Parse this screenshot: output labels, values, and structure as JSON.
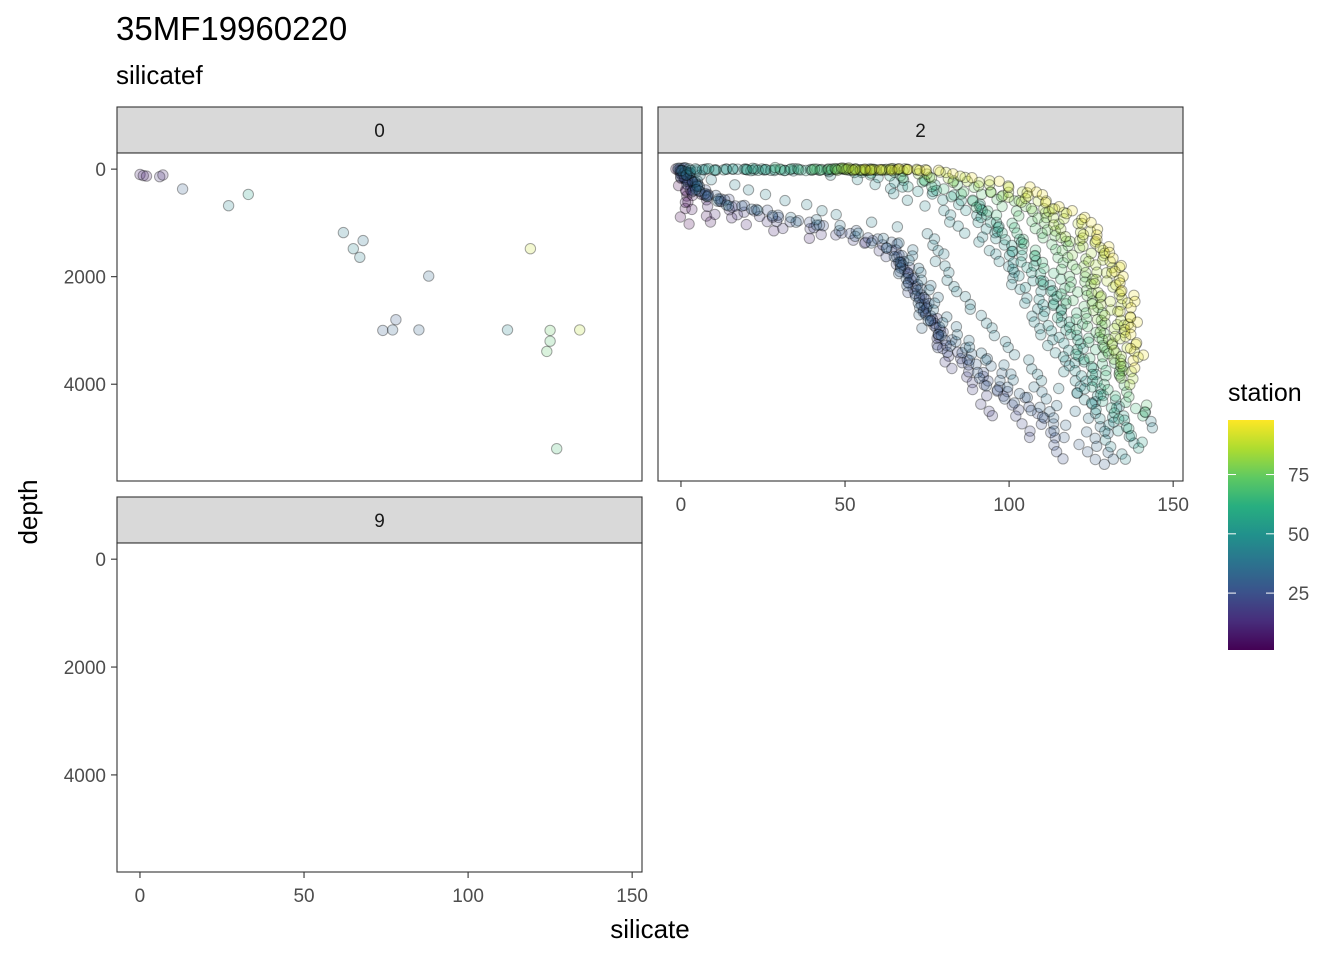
{
  "chart_data": {
    "type": "scatter",
    "title": "35MF19960220",
    "subtitle": "silicatef",
    "xlabel": "silicate",
    "ylabel": "depth",
    "xlim": [
      -7,
      153
    ],
    "ylim": [
      5800,
      -300
    ],
    "y_reversed": true,
    "x_ticks": [
      0,
      50,
      100,
      150
    ],
    "y_ticks": [
      0,
      2000,
      4000
    ],
    "grid": false,
    "legend": {
      "title": "station",
      "type": "colorbar",
      "palette": "viridis",
      "min": 1,
      "max": 98,
      "ticks": [
        25,
        50,
        75
      ],
      "placement": "right"
    },
    "facets": [
      {
        "label": "0",
        "points": [
          {
            "x": 0,
            "y": 100,
            "station": 10
          },
          {
            "x": 1,
            "y": 120,
            "station": 12
          },
          {
            "x": 2,
            "y": 130,
            "station": 8
          },
          {
            "x": 6,
            "y": 140,
            "station": 14
          },
          {
            "x": 7,
            "y": 110,
            "station": 11
          },
          {
            "x": 13,
            "y": 370,
            "station": 30
          },
          {
            "x": 27,
            "y": 680,
            "station": 45
          },
          {
            "x": 33,
            "y": 470,
            "station": 55
          },
          {
            "x": 62,
            "y": 1180,
            "station": 40
          },
          {
            "x": 65,
            "y": 1480,
            "station": 45
          },
          {
            "x": 67,
            "y": 1640,
            "station": 42
          },
          {
            "x": 68,
            "y": 1330,
            "station": 38
          },
          {
            "x": 74,
            "y": 3000,
            "station": 30
          },
          {
            "x": 77,
            "y": 2990,
            "station": 32
          },
          {
            "x": 78,
            "y": 2800,
            "station": 28
          },
          {
            "x": 85,
            "y": 2990,
            "station": 32
          },
          {
            "x": 88,
            "y": 1990,
            "station": 34
          },
          {
            "x": 112,
            "y": 2990,
            "station": 44
          },
          {
            "x": 119,
            "y": 1480,
            "station": 90
          },
          {
            "x": 124,
            "y": 3390,
            "station": 72
          },
          {
            "x": 125,
            "y": 3000,
            "station": 74
          },
          {
            "x": 125,
            "y": 3200,
            "station": 70
          },
          {
            "x": 127,
            "y": 5200,
            "station": 68
          },
          {
            "x": 134,
            "y": 2990,
            "station": 88
          }
        ]
      },
      {
        "label": "2",
        "generated_from_profiles": true,
        "profiles": [
          {
            "station": 1,
            "k": [
              [
                0,
                0
              ],
              [
                0.5,
                200
              ],
              [
                1,
                700
              ],
              [
                1,
                1000
              ]
            ]
          },
          {
            "station": 5,
            "k": [
              [
                0,
                0
              ],
              [
                1,
                200
              ],
              [
                3,
                700
              ],
              [
                8,
                1000
              ]
            ]
          },
          {
            "station": 10,
            "k": [
              [
                0,
                0
              ],
              [
                3,
                300
              ],
              [
                10,
                800
              ],
              [
                25,
                1150
              ],
              [
                40,
                1300
              ]
            ]
          },
          {
            "station": 14,
            "k": [
              [
                0,
                0
              ],
              [
                5,
                400
              ],
              [
                20,
                900
              ],
              [
                40,
                1200
              ],
              [
                55,
                1350
              ]
            ]
          },
          {
            "station": 18,
            "k": [
              [
                0,
                0
              ],
              [
                5,
                400
              ],
              [
                25,
                900
              ],
              [
                50,
                1250
              ],
              [
                65,
                1600
              ],
              [
                75,
                2600
              ],
              [
                82,
                3600
              ],
              [
                90,
                4100
              ],
              [
                96,
                4600
              ]
            ]
          },
          {
            "station": 22,
            "k": [
              [
                0,
                0
              ],
              [
                5,
                400
              ],
              [
                30,
                950
              ],
              [
                60,
                1350
              ],
              [
                70,
                2000
              ],
              [
                78,
                3000
              ],
              [
                88,
                3700
              ],
              [
                102,
                4500
              ],
              [
                108,
                5000
              ]
            ]
          },
          {
            "station": 26,
            "k": [
              [
                0,
                0
              ],
              [
                8,
                500
              ],
              [
                40,
                1000
              ],
              [
                65,
                1400
              ],
              [
                73,
                2600
              ],
              [
                80,
                3300
              ],
              [
                95,
                4000
              ],
              [
                108,
                4400
              ],
              [
                115,
                5200
              ],
              [
                118,
                5400
              ]
            ]
          },
          {
            "station": 30,
            "k": [
              [
                0,
                0
              ],
              [
                5,
                400
              ],
              [
                35,
                950
              ],
              [
                62,
                1300
              ],
              [
                72,
                2100
              ],
              [
                78,
                3000
              ],
              [
                92,
                3900
              ],
              [
                108,
                4600
              ],
              [
                118,
                5000
              ],
              [
                128,
                5500
              ]
            ]
          },
          {
            "station": 34,
            "k": [
              [
                0,
                0
              ],
              [
                8,
                550
              ],
              [
                40,
                1050
              ],
              [
                65,
                1500
              ],
              [
                70,
                2200
              ],
              [
                75,
                3000
              ],
              [
                88,
                3300
              ],
              [
                105,
                4300
              ],
              [
                125,
                5000
              ],
              [
                132,
                5400
              ]
            ]
          },
          {
            "station": 38,
            "k": [
              [
                0,
                0
              ],
              [
                10,
                600
              ],
              [
                42,
                1000
              ],
              [
                68,
                1400
              ],
              [
                75,
                2200
              ],
              [
                80,
                2800
              ],
              [
                95,
                3600
              ],
              [
                115,
                4400
              ],
              [
                130,
                4900
              ]
            ]
          },
          {
            "station": 42,
            "k": [
              [
                0,
                0
              ],
              [
                20,
                400
              ],
              [
                50,
                900
              ],
              [
                75,
                1200
              ],
              [
                82,
                2000
              ],
              [
                95,
                3000
              ],
              [
                110,
                3900
              ],
              [
                128,
                4300
              ],
              [
                140,
                4500
              ],
              [
                145,
                4800
              ]
            ]
          },
          {
            "station": 46,
            "k": [
              [
                2,
                0
              ],
              [
                25,
                0
              ],
              [
                55,
                200
              ],
              [
                80,
                800
              ],
              [
                95,
                1500
              ],
              [
                105,
                2400
              ],
              [
                112,
                3200
              ],
              [
                120,
                4000
              ],
              [
                128,
                4700
              ],
              [
                135,
                5400
              ]
            ]
          },
          {
            "station": 50,
            "k": [
              [
                5,
                0
              ],
              [
                35,
                0
              ],
              [
                60,
                150
              ],
              [
                85,
                700
              ],
              [
                98,
                1400
              ],
              [
                108,
                2300
              ],
              [
                115,
                3100
              ],
              [
                122,
                3900
              ],
              [
                130,
                4600
              ],
              [
                138,
                5100
              ]
            ]
          },
          {
            "station": 55,
            "k": [
              [
                10,
                0
              ],
              [
                45,
                0
              ],
              [
                65,
                200
              ],
              [
                88,
                600
              ],
              [
                100,
                1300
              ],
              [
                112,
                2200
              ],
              [
                118,
                3000
              ],
              [
                125,
                3800
              ],
              [
                133,
                4500
              ],
              [
                140,
                5200
              ]
            ]
          },
          {
            "station": 60,
            "k": [
              [
                20,
                0
              ],
              [
                50,
                0
              ],
              [
                72,
                200
              ],
              [
                92,
                700
              ],
              [
                105,
                1500
              ],
              [
                115,
                2500
              ],
              [
                120,
                3300
              ],
              [
                127,
                4100
              ],
              [
                135,
                4800
              ]
            ]
          },
          {
            "station": 65,
            "k": [
              [
                30,
                0
              ],
              [
                55,
                0
              ],
              [
                78,
                300
              ],
              [
                96,
                800
              ],
              [
                108,
                1500
              ],
              [
                118,
                2400
              ],
              [
                123,
                3200
              ],
              [
                130,
                4000
              ],
              [
                140,
                4600
              ]
            ]
          },
          {
            "station": 70,
            "k": [
              [
                40,
                0
              ],
              [
                58,
                0
              ],
              [
                82,
                300
              ],
              [
                100,
                700
              ],
              [
                112,
                1400
              ],
              [
                120,
                2300
              ],
              [
                126,
                3100
              ],
              [
                133,
                3900
              ],
              [
                142,
                4500
              ]
            ]
          },
          {
            "station": 75,
            "k": [
              [
                45,
                0
              ],
              [
                62,
                0
              ],
              [
                85,
                250
              ],
              [
                104,
                650
              ],
              [
                116,
                1300
              ],
              [
                124,
                2200
              ],
              [
                128,
                3000
              ],
              [
                134,
                3800
              ]
            ]
          },
          {
            "station": 80,
            "k": [
              [
                48,
                0
              ],
              [
                65,
                0
              ],
              [
                90,
                300
              ],
              [
                108,
                700
              ],
              [
                120,
                1400
              ],
              [
                126,
                2400
              ],
              [
                130,
                3200
              ],
              [
                135,
                3900
              ]
            ]
          },
          {
            "station": 85,
            "k": [
              [
                50,
                0
              ],
              [
                68,
                0
              ],
              [
                94,
                300
              ],
              [
                112,
                800
              ],
              [
                124,
                1600
              ],
              [
                130,
                2600
              ],
              [
                134,
                3400
              ],
              [
                138,
                4000
              ]
            ]
          },
          {
            "station": 88,
            "k": [
              [
                52,
                0
              ],
              [
                72,
                0
              ],
              [
                98,
                300
              ],
              [
                116,
                800
              ],
              [
                128,
                1500
              ],
              [
                133,
                2500
              ],
              [
                136,
                3300
              ]
            ]
          },
          {
            "station": 92,
            "k": [
              [
                55,
                0
              ],
              [
                75,
                0
              ],
              [
                100,
                300
              ],
              [
                120,
                900
              ],
              [
                132,
                1800
              ],
              [
                136,
                2800
              ],
              [
                138,
                3500
              ]
            ]
          },
          {
            "station": 96,
            "k": [
              [
                58,
                0
              ],
              [
                78,
                0
              ],
              [
                104,
                300
              ],
              [
                125,
                1000
              ],
              [
                135,
                2000
              ],
              [
                138,
                3000
              ],
              [
                140,
                3700
              ]
            ]
          }
        ]
      },
      {
        "label": "9",
        "points": []
      }
    ]
  }
}
